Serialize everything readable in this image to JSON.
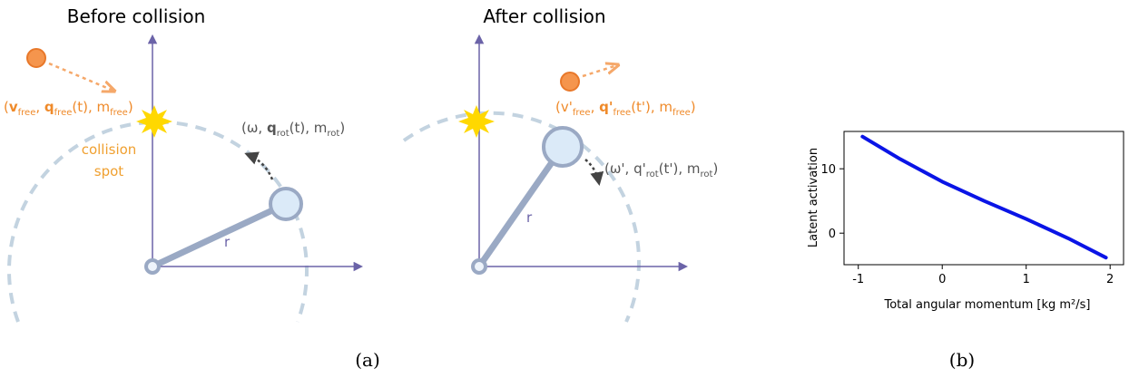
{
  "panel_a": {
    "before": {
      "title": "Before collision",
      "free_label": [
        "(",
        "v",
        "free",
        ", ",
        "q",
        "free",
        "(t), m",
        "free",
        ")"
      ],
      "rot_label": [
        "(ω, ",
        "q",
        "rot",
        "(t), m",
        "rot",
        ")"
      ],
      "spot_label": [
        "collision",
        "spot"
      ],
      "r_label": "r"
    },
    "after": {
      "title": "After collision",
      "free_label": [
        "(v'",
        "free",
        ", ",
        "q'",
        "free",
        "(t'), m",
        "free",
        ")"
      ],
      "rot_label": [
        "(ω', q'",
        "rot",
        "(t'), m",
        "rot",
        ")"
      ],
      "r_label": "r"
    },
    "caption": "(a)"
  },
  "caption_b": "(b)",
  "chart_data": {
    "type": "line",
    "xlabel": "Total angular momentum [kg m²/s]",
    "ylabel": "Latent activation",
    "x": [
      -0.95,
      -0.5,
      0,
      0.5,
      1,
      1.5,
      1.95
    ],
    "values": [
      15,
      11.5,
      8,
      5,
      2.2,
      -0.8,
      -3.8
    ],
    "color": "#0a14e6",
    "xlim": [
      -1.17,
      2.16
    ],
    "ylim": [
      -4.9,
      15.8
    ],
    "xticks": [
      -1,
      0,
      1,
      2
    ],
    "yticks": [
      0,
      10
    ]
  }
}
